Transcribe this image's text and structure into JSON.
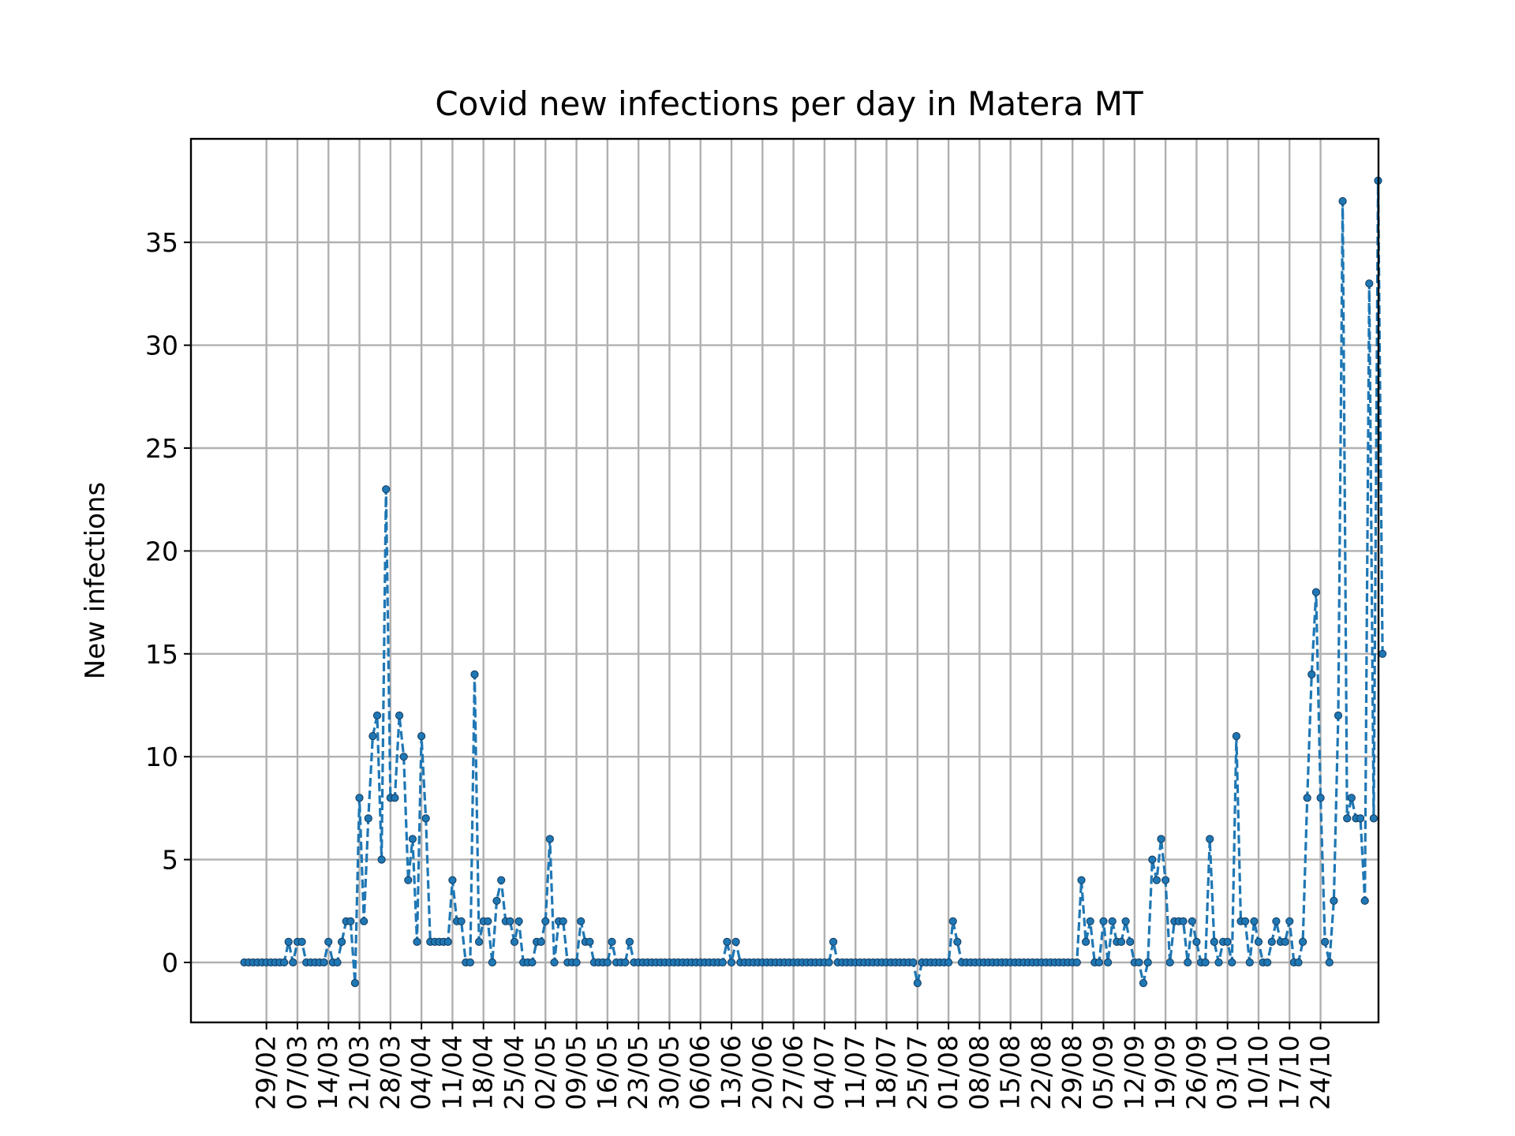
{
  "chart_data": {
    "type": "line",
    "title": "Covid new infections per day in Matera MT",
    "xlabel": "",
    "ylabel": "New infections",
    "start_date": "2020-02-24",
    "date_format": "DD/MM",
    "x_ticks": [
      "29/02",
      "07/03",
      "14/03",
      "21/03",
      "28/03",
      "04/04",
      "11/04",
      "18/04",
      "25/04",
      "02/05",
      "09/05",
      "16/05",
      "23/05",
      "30/05",
      "06/06",
      "13/06",
      "20/06",
      "27/06",
      "04/07",
      "11/07",
      "18/07",
      "25/07",
      "01/08",
      "08/08",
      "15/08",
      "22/08",
      "29/08",
      "05/09",
      "12/09",
      "19/09",
      "26/09",
      "03/10",
      "10/10",
      "17/10",
      "24/10"
    ],
    "y_ticks": [
      0,
      5,
      10,
      15,
      20,
      25,
      30,
      35
    ],
    "ylim": [
      -3,
      40
    ],
    "grid": true,
    "series": [
      {
        "name": "",
        "color": "#1f77b4",
        "line_style": "dashed",
        "marker": "dot",
        "values": [
          0,
          0,
          0,
          0,
          0,
          0,
          0,
          0,
          0,
          0,
          1,
          0,
          1,
          1,
          0,
          0,
          0,
          0,
          0,
          1,
          0,
          0,
          1,
          2,
          2,
          -1,
          8,
          2,
          7,
          11,
          12,
          5,
          23,
          8,
          8,
          12,
          10,
          4,
          6,
          1,
          11,
          7,
          1,
          1,
          1,
          1,
          1,
          4,
          2,
          2,
          0,
          0,
          14,
          1,
          2,
          2,
          0,
          3,
          4,
          2,
          2,
          1,
          2,
          0,
          0,
          0,
          1,
          1,
          2,
          6,
          0,
          2,
          2,
          0,
          0,
          0,
          2,
          1,
          1,
          0,
          0,
          0,
          0,
          1,
          0,
          0,
          0,
          1,
          0,
          0,
          0,
          0,
          0,
          0,
          0,
          0,
          0,
          0,
          0,
          0,
          0,
          0,
          0,
          0,
          0,
          0,
          0,
          0,
          0,
          1,
          0,
          1,
          0,
          0,
          0,
          0,
          0,
          0,
          0,
          0,
          0,
          0,
          0,
          0,
          0,
          0,
          0,
          0,
          0,
          0,
          0,
          0,
          0,
          1,
          0,
          0,
          0,
          0,
          0,
          0,
          0,
          0,
          0,
          0,
          0,
          0,
          0,
          0,
          0,
          0,
          0,
          0,
          -1,
          0,
          0,
          0,
          0,
          0,
          0,
          0,
          2,
          1,
          0,
          0,
          0,
          0,
          0,
          0,
          0,
          0,
          0,
          0,
          0,
          0,
          0,
          0,
          0,
          0,
          0,
          0,
          0,
          0,
          0,
          0,
          0,
          0,
          0,
          0,
          0,
          4,
          1,
          2,
          0,
          0,
          2,
          0,
          2,
          1,
          1,
          2,
          1,
          0,
          0,
          -1,
          0,
          5,
          4,
          6,
          4,
          0,
          2,
          2,
          2,
          0,
          2,
          1,
          0,
          0,
          6,
          1,
          0,
          1,
          1,
          0,
          11,
          2,
          2,
          0,
          2,
          1,
          0,
          0,
          1,
          2,
          1,
          1,
          2,
          0,
          0,
          1,
          8,
          14,
          18,
          8,
          1,
          0,
          3,
          12,
          37,
          7,
          8,
          7,
          7,
          3,
          33,
          7,
          38,
          15
        ]
      }
    ]
  }
}
